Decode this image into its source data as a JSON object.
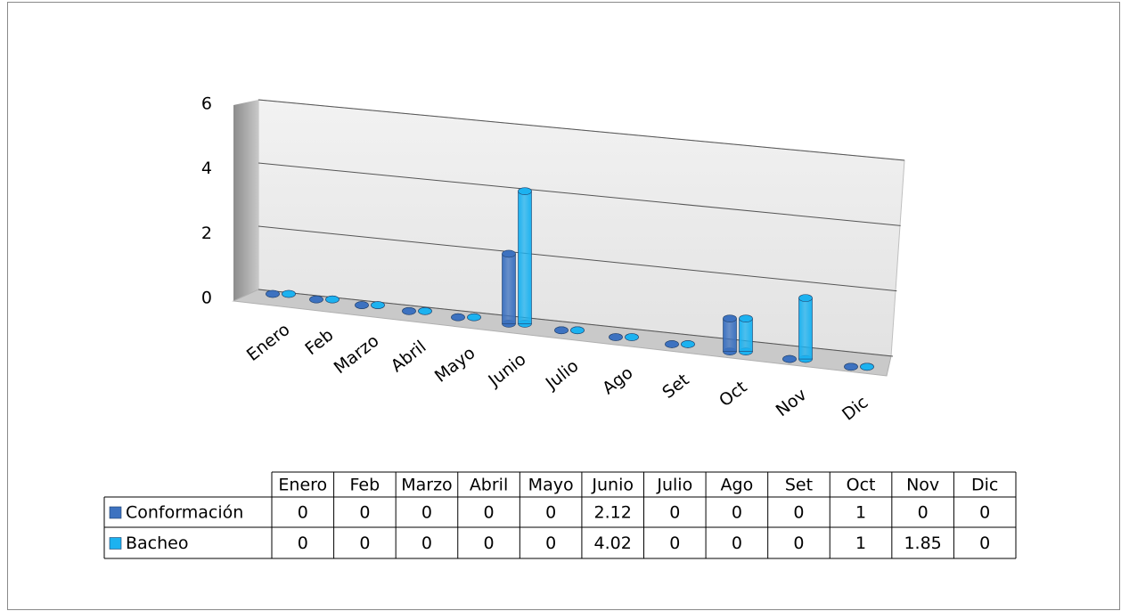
{
  "chart_data": {
    "type": "bar3d",
    "categories": [
      "Enero",
      "Feb",
      "Marzo",
      "Abril",
      "Mayo",
      "Junio",
      "Julio",
      "Ago",
      "Set",
      "Oct",
      "Nov",
      "Dic"
    ],
    "series": [
      {
        "name": "Conformación",
        "color": "#3d72c0",
        "values": [
          0,
          0,
          0,
          0,
          0,
          2.12,
          0,
          0,
          0,
          1,
          0,
          0
        ]
      },
      {
        "name": "Bacheo",
        "color": "#1cb2f0",
        "values": [
          0,
          0,
          0,
          0,
          0,
          4.02,
          0,
          0,
          0,
          1,
          1.85,
          0
        ]
      }
    ],
    "ylim": [
      0,
      6
    ],
    "yticks": [
      0,
      2,
      4,
      6
    ],
    "grid": true,
    "data_table": true
  }
}
